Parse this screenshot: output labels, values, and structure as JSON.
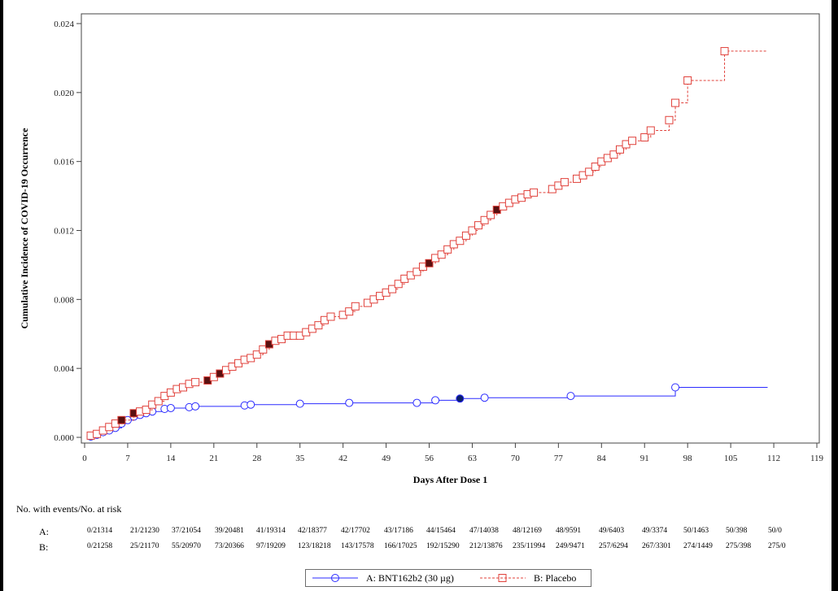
{
  "chart_data": {
    "type": "line",
    "xlabel": "Days After Dose 1",
    "ylabel": "Cumulative Incidence of COVID-19 Occurrence",
    "xlim": [
      0,
      119
    ],
    "ylim": [
      0,
      0.024
    ],
    "xticks": [
      "0",
      "7",
      "14",
      "21",
      "28",
      "35",
      "42",
      "49",
      "56",
      "63",
      "70",
      "77",
      "84",
      "91",
      "98",
      "105",
      "112",
      "119"
    ],
    "yticks": [
      "0.000",
      "0.004",
      "0.008",
      "0.012",
      "0.016",
      "0.020",
      "0.024"
    ],
    "grid": false,
    "step": true,
    "series": [
      {
        "key": "A",
        "name": "A: BNT162b2 (30 µg)",
        "color": "#2b2bff",
        "marker": "circle",
        "line": "solid",
        "x": [
          1,
          2,
          3,
          4,
          5,
          6,
          7,
          8,
          9,
          10,
          11,
          13,
          14,
          17,
          18,
          26,
          27,
          35,
          43,
          54,
          57,
          61,
          65,
          79,
          96
        ],
        "y": [
          5e-05,
          0.00015,
          0.0003,
          0.0004,
          0.00055,
          0.0008,
          0.001,
          0.0012,
          0.0013,
          0.0014,
          0.0015,
          0.00165,
          0.0017,
          0.00175,
          0.0018,
          0.00185,
          0.0019,
          0.00195,
          0.002,
          0.002,
          0.00215,
          0.00225,
          0.0023,
          0.0024,
          0.0029
        ],
        "filled_x": [
          61
        ],
        "x_end": 111
      },
      {
        "key": "B",
        "name": "B: Placebo",
        "color": "#e0403a",
        "marker": "square",
        "line": "dashed",
        "x": [
          1,
          2,
          3,
          4,
          5,
          6,
          8,
          9,
          10,
          11,
          12,
          13,
          14,
          15,
          16,
          17,
          18,
          20,
          21,
          22,
          23,
          24,
          25,
          26,
          27,
          28,
          29,
          30,
          31,
          32,
          33,
          34,
          35,
          36,
          37,
          38,
          39,
          40,
          42,
          43,
          44,
          46,
          47,
          48,
          49,
          50,
          51,
          52,
          53,
          54,
          55,
          56,
          57,
          58,
          59,
          60,
          61,
          62,
          63,
          64,
          65,
          66,
          67,
          68,
          69,
          70,
          71,
          72,
          73,
          76,
          77,
          78,
          80,
          81,
          82,
          83,
          84,
          85,
          86,
          87,
          88,
          89,
          91,
          92,
          95,
          96,
          98,
          104
        ],
        "y": [
          0.0001,
          0.0002,
          0.0004,
          0.0006,
          0.0008,
          0.001,
          0.0014,
          0.0015,
          0.0016,
          0.0019,
          0.0021,
          0.0024,
          0.0026,
          0.0028,
          0.0029,
          0.0031,
          0.0032,
          0.0033,
          0.0035,
          0.0037,
          0.0039,
          0.0041,
          0.0043,
          0.0045,
          0.0046,
          0.0048,
          0.0051,
          0.0054,
          0.0056,
          0.0057,
          0.0059,
          0.0059,
          0.0059,
          0.0061,
          0.0063,
          0.0065,
          0.0068,
          0.007,
          0.0071,
          0.0073,
          0.0076,
          0.0078,
          0.008,
          0.0082,
          0.0084,
          0.0086,
          0.0089,
          0.0092,
          0.0094,
          0.0096,
          0.0099,
          0.0101,
          0.0104,
          0.0106,
          0.0109,
          0.0112,
          0.0114,
          0.0117,
          0.012,
          0.0123,
          0.0126,
          0.0129,
          0.0132,
          0.0134,
          0.0136,
          0.0138,
          0.0139,
          0.0141,
          0.0142,
          0.0144,
          0.0146,
          0.0148,
          0.015,
          0.0152,
          0.0154,
          0.0157,
          0.016,
          0.0162,
          0.0164,
          0.0167,
          0.017,
          0.0172,
          0.0174,
          0.0178,
          0.0184,
          0.0194,
          0.0207,
          0.0224
        ],
        "filled_x": [
          6,
          8,
          20,
          22,
          30,
          56,
          67
        ],
        "x_end": 111
      }
    ]
  },
  "risk_table": {
    "title": "No. with events/No. at risk",
    "rows": [
      {
        "key": "A:",
        "values": [
          "0/21314",
          "21/21230",
          "37/21054",
          "39/20481",
          "41/19314",
          "42/18377",
          "42/17702",
          "43/17186",
          "44/15464",
          "47/14038",
          "48/12169",
          "48/9591",
          "49/6403",
          "49/3374",
          "50/1463",
          "50/398",
          "50/0"
        ]
      },
      {
        "key": "B:",
        "values": [
          "0/21258",
          "25/21170",
          "55/20970",
          "73/20366",
          "97/19209",
          "123/18218",
          "143/17578",
          "166/17025",
          "192/15290",
          "212/13876",
          "235/11994",
          "249/9471",
          "257/6294",
          "267/3301",
          "274/1449",
          "275/398",
          "275/0"
        ]
      }
    ]
  },
  "legend": {
    "a_label": "A: BNT162b2 (30 µg)",
    "b_label": "B: Placebo"
  }
}
